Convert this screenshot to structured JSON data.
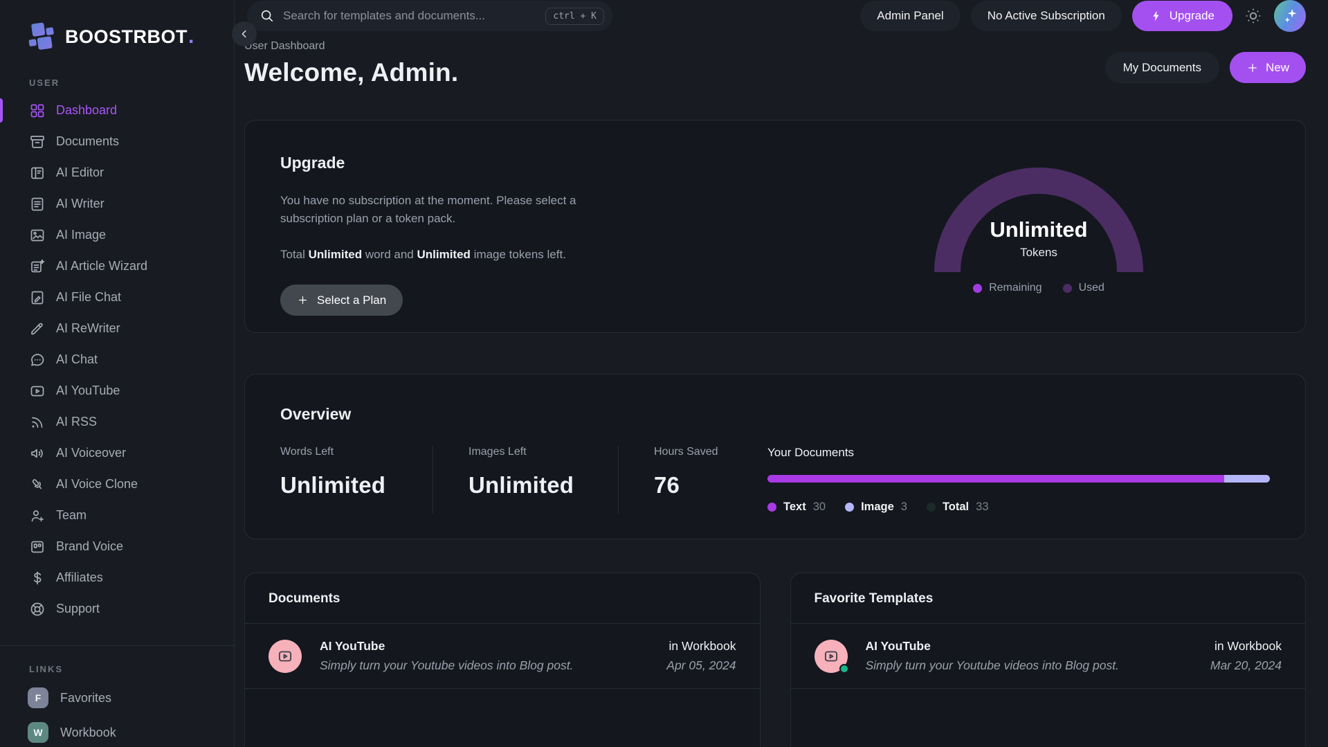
{
  "brand": {
    "name": "BOOSTRBOT",
    "dot": "."
  },
  "topbar": {
    "search_placeholder": "Search for templates and documents...",
    "shortcut": "ctrl + K",
    "admin_panel": "Admin Panel",
    "subscription_status": "No Active Subscription",
    "upgrade": "Upgrade"
  },
  "sidebar": {
    "user_label": "USER",
    "links_label": "LINKS",
    "items": [
      {
        "label": "Dashboard",
        "icon": "dashboard-grid-icon",
        "active": true
      },
      {
        "label": "Documents",
        "icon": "archive-icon"
      },
      {
        "label": "AI Editor",
        "icon": "reader-icon"
      },
      {
        "label": "AI Writer",
        "icon": "file-lines-icon"
      },
      {
        "label": "AI Image",
        "icon": "image-icon"
      },
      {
        "label": "AI Article Wizard",
        "icon": "article-sparkle-icon"
      },
      {
        "label": "AI File Chat",
        "icon": "file-pen-icon"
      },
      {
        "label": "AI ReWriter",
        "icon": "highlighter-icon"
      },
      {
        "label": "AI Chat",
        "icon": "chat-bubble-icon"
      },
      {
        "label": "AI YouTube",
        "icon": "video-play-icon"
      },
      {
        "label": "AI RSS",
        "icon": "rss-icon"
      },
      {
        "label": "AI Voiceover",
        "icon": "speaker-icon"
      },
      {
        "label": "AI Voice Clone",
        "icon": "microphone-icon"
      },
      {
        "label": "Team",
        "icon": "user-plus-icon"
      },
      {
        "label": "Brand Voice",
        "icon": "brand-kanban-icon"
      },
      {
        "label": "Affiliates",
        "icon": "dollar-icon"
      },
      {
        "label": "Support",
        "icon": "lifebuoy-icon"
      }
    ],
    "links": [
      {
        "label": "Favorites",
        "badge": "F",
        "badge_color": "#7d8499"
      },
      {
        "label": "Workbook",
        "badge": "W",
        "badge_color": "#5d8882"
      }
    ]
  },
  "header": {
    "breadcrumb": "User Dashboard",
    "title": "Welcome, Admin.",
    "my_documents": "My Documents",
    "new": "New"
  },
  "upgrade_card": {
    "title": "Upgrade",
    "body": "You have no subscription at the moment. Please select a subscription plan or a token pack.",
    "tokens_prefix": "Total ",
    "tokens_bold1": "Unlimited",
    "tokens_mid": " word and ",
    "tokens_bold2": "Unlimited",
    "tokens_suffix": " image tokens left.",
    "cta": "Select a Plan",
    "gauge": {
      "value": "Unlimited",
      "unit": "Tokens",
      "arc_color": "#4b2d63",
      "legend": [
        {
          "label": "Remaining",
          "color": "#a23ce0"
        },
        {
          "label": "Used",
          "color": "#4b2d63"
        }
      ]
    }
  },
  "overview_card": {
    "title": "Overview",
    "stats": [
      {
        "label": "Words Left",
        "value": "Unlimited"
      },
      {
        "label": "Images Left",
        "value": "Unlimited"
      },
      {
        "label": "Hours Saved",
        "value": "76"
      }
    ],
    "your_documents": {
      "title": "Your Documents",
      "legend": [
        {
          "label": "Text",
          "value": 30,
          "color": "#a93ae6"
        },
        {
          "label": "Image",
          "value": 3,
          "color": "#b4b6f9"
        },
        {
          "label": "Total",
          "value": 33,
          "color": "#1d2b28"
        }
      ]
    }
  },
  "documents_card": {
    "title": "Documents",
    "item": {
      "title": "AI YouTube",
      "description": "Simply turn your Youtube videos into Blog post.",
      "location": "in Workbook",
      "date": "Apr 05, 2024"
    }
  },
  "favorites_card": {
    "title": "Favorite Templates",
    "item": {
      "title": "AI YouTube",
      "description": "Simply turn your Youtube videos into Blog post.",
      "location": "in Workbook",
      "date": "Mar 20, 2024"
    }
  },
  "colors": {
    "accent": "#a855f7",
    "pink": "#f6b1ba",
    "green": "#14b789"
  }
}
